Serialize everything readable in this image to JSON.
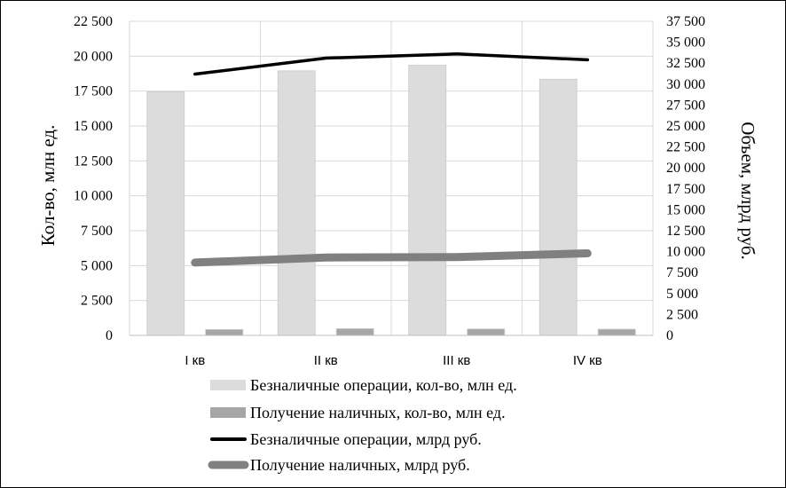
{
  "chart_data": {
    "type": "bar",
    "categories": [
      "I кв",
      "II кв",
      "III кв",
      "IV кв"
    ],
    "ylabel": "Кол-во, млн ед.",
    "ylabel_right": "Объем, млрд руб.",
    "ylim": [
      0,
      22500
    ],
    "ylim_right": [
      0,
      37500
    ],
    "yticks": [
      "0",
      "2 500",
      "5 000",
      "7 500",
      "10 000",
      "12 500",
      "15 000",
      "17 500",
      "20 000",
      "22 500"
    ],
    "yticks_right": [
      "0",
      "2 500",
      "5 000",
      "7 500",
      "10 000",
      "12 500",
      "15 000",
      "17 500",
      "20 000",
      "22 500",
      "25 000",
      "27 500",
      "30 000",
      "32 500",
      "35 000",
      "37 500"
    ],
    "grid": true,
    "legend_position": "bottom",
    "series": [
      {
        "name": "Безналичные операции, кол-во, млн ед.",
        "type": "bar",
        "axis": "left",
        "color": "#dcdcdc",
        "values": [
          17450,
          18950,
          19350,
          18350
        ]
      },
      {
        "name": "Получение наличных, кол-во, млн ед.",
        "type": "bar",
        "axis": "left",
        "color": "#a6a6a6",
        "values": [
          420,
          480,
          460,
          440
        ]
      },
      {
        "name": "Безналичные операции, млрд руб.",
        "type": "line",
        "axis": "right",
        "color": "#000000",
        "values": [
          31200,
          33100,
          33600,
          32900
        ]
      },
      {
        "name": "Получение наличных, млрд руб.",
        "type": "line",
        "axis": "right",
        "color": "#808080",
        "values": [
          8700,
          9300,
          9350,
          9800
        ]
      }
    ]
  }
}
